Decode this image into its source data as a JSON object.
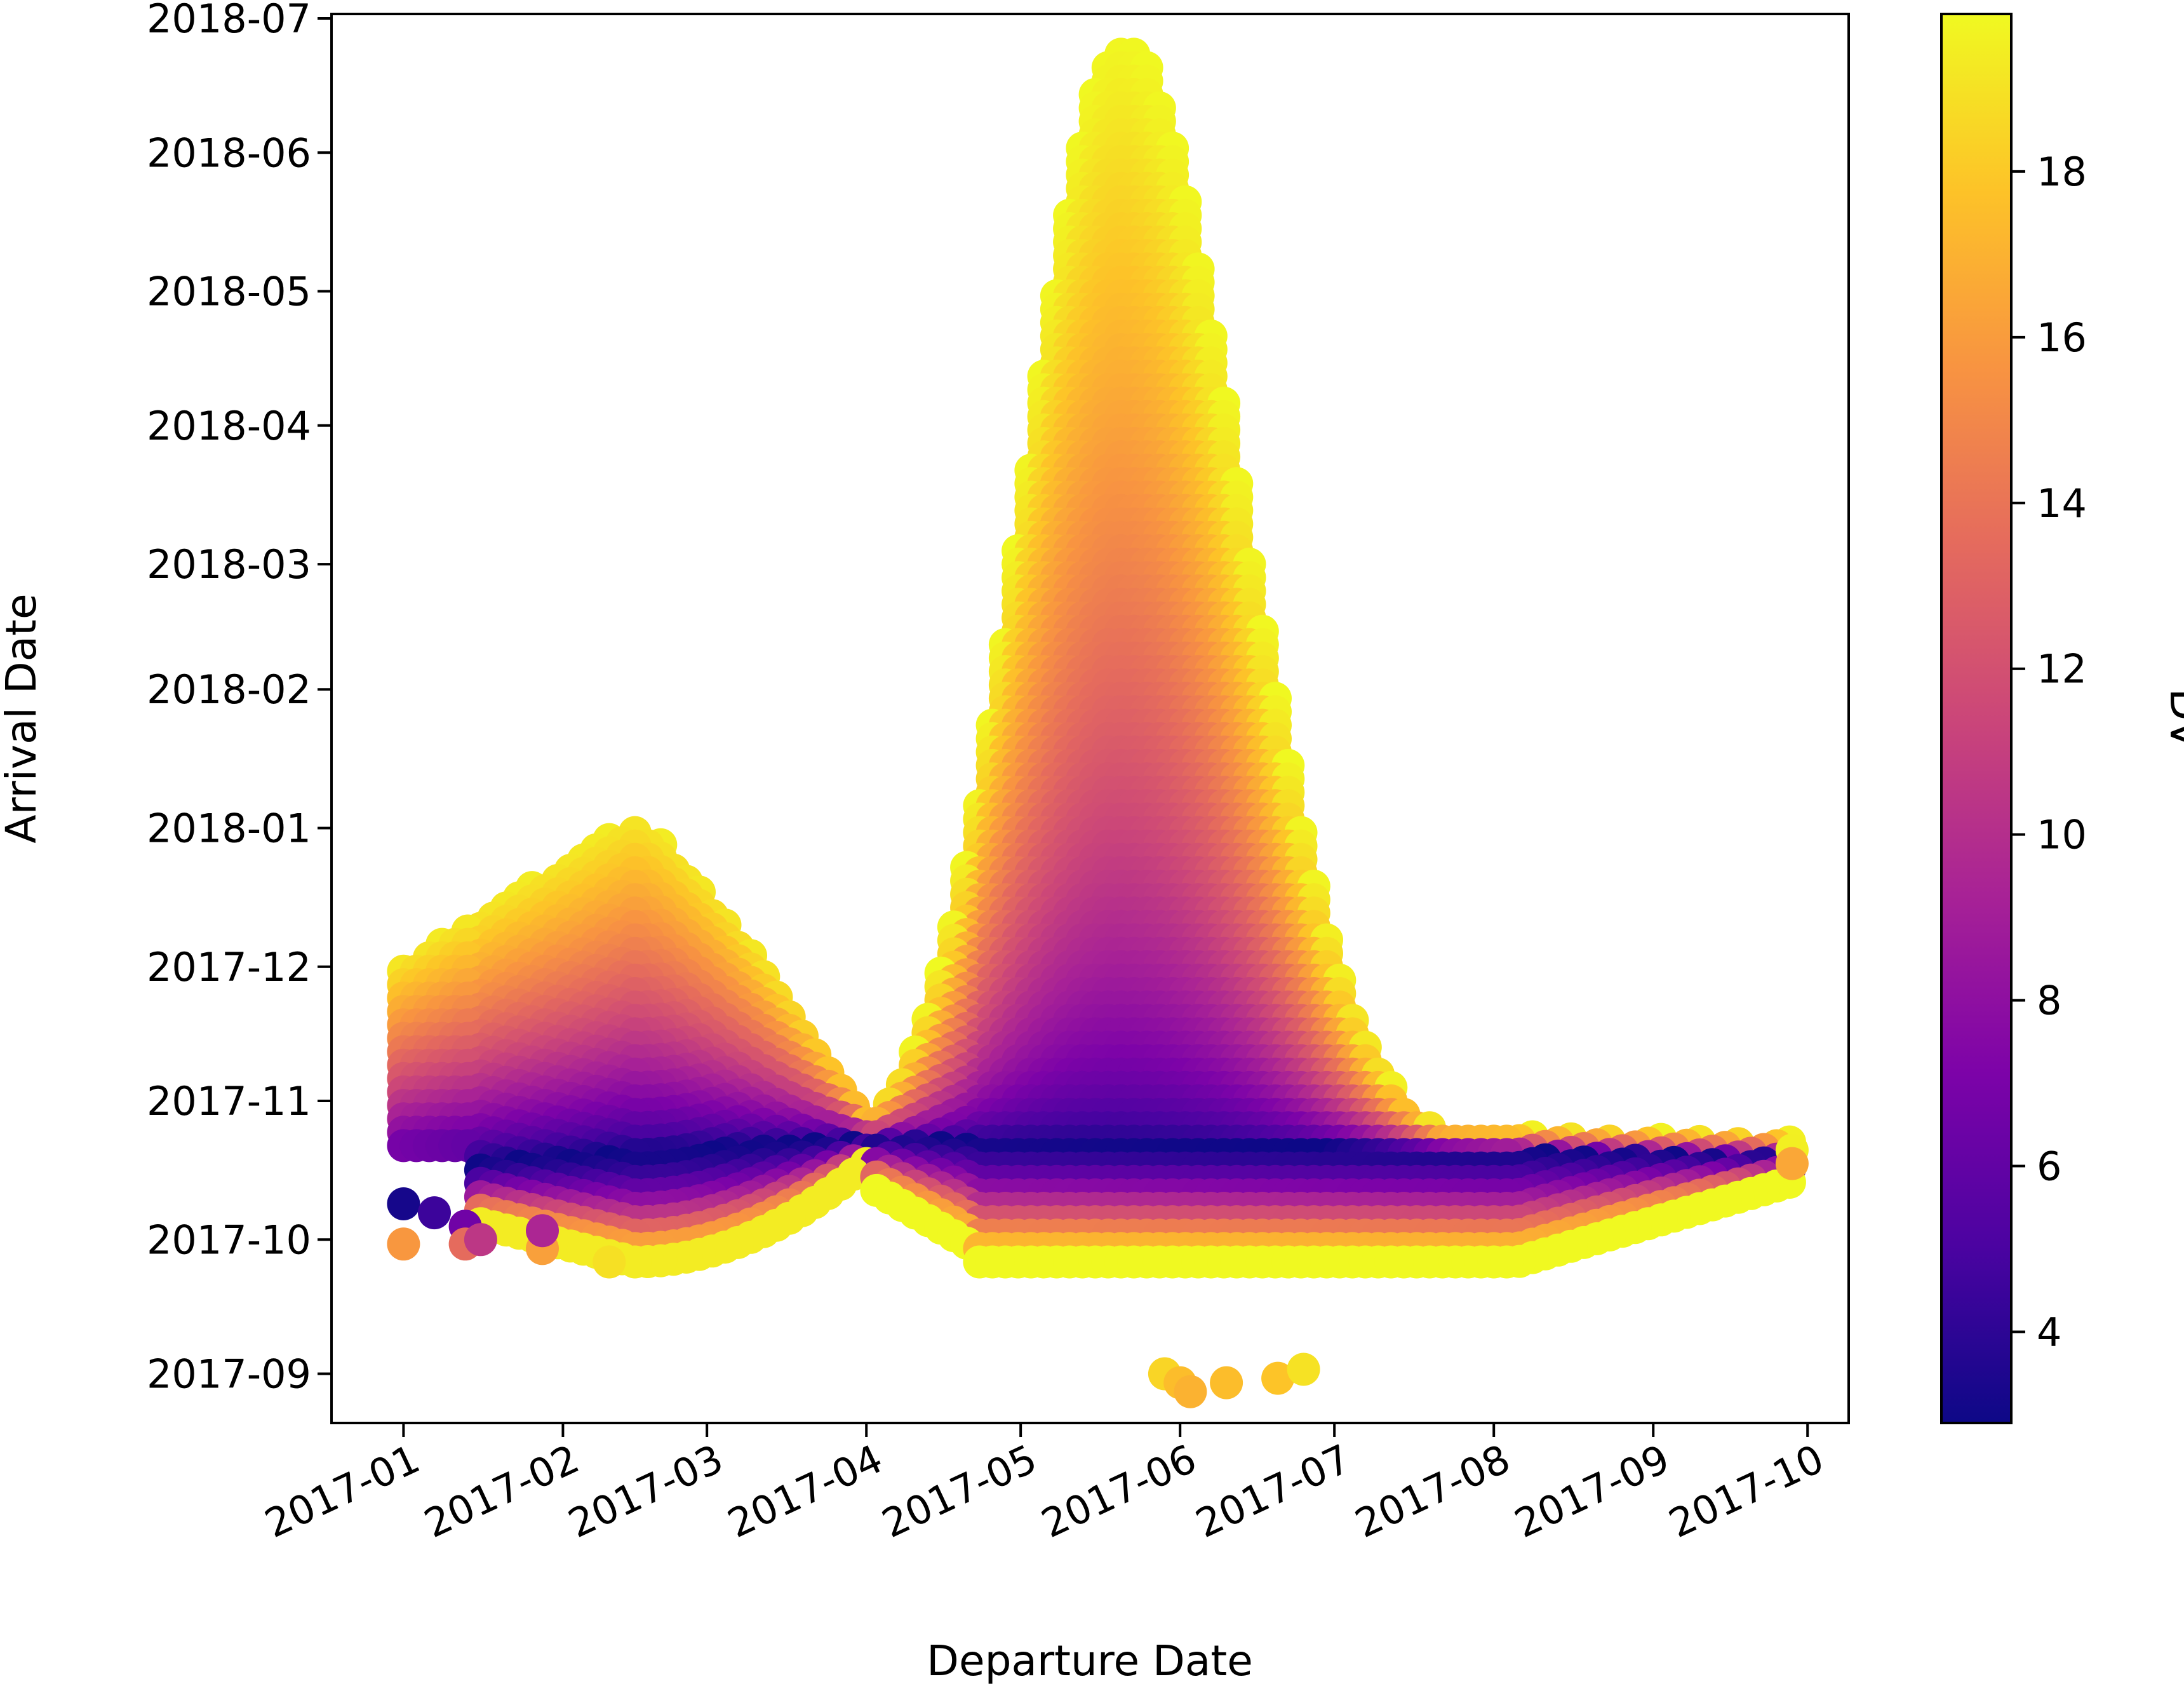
{
  "chart_data": {
    "type": "scatter",
    "title": "",
    "xlabel": "Departure Date",
    "ylabel": "Arrival Date",
    "x_ticks": [
      "2017-01",
      "2017-02",
      "2017-03",
      "2017-04",
      "2017-05",
      "2017-06",
      "2017-07",
      "2017-08",
      "2017-09",
      "2017-10"
    ],
    "y_ticks": [
      "2017-09",
      "2017-10",
      "2017-11",
      "2017-12",
      "2018-01",
      "2018-02",
      "2018-03",
      "2018-04",
      "2018-05",
      "2018-06",
      "2018-07"
    ],
    "xlim": [
      "2016-12-18",
      "2017-10-09"
    ],
    "ylim": [
      "2017-08-21",
      "2018-07-02"
    ],
    "colorbar": {
      "label": "DV",
      "colormap": "plasma",
      "range": [
        2.9,
        19.9
      ],
      "ticks": [
        4,
        6,
        8,
        10,
        12,
        14,
        16,
        18
      ]
    },
    "grid": false,
    "points": [
      {
        "departure": "2017-01-01",
        "arrival": "2017-10-09",
        "dv": 3.2
      },
      {
        "departure": "2017-01-01",
        "arrival": "2017-09-30",
        "dv": 15.8
      },
      {
        "departure": "2017-01-07",
        "arrival": "2017-10-07",
        "dv": 4.5
      },
      {
        "departure": "2017-01-13",
        "arrival": "2017-10-04",
        "dv": 6.6
      },
      {
        "departure": "2017-01-13",
        "arrival": "2017-09-30",
        "dv": 13.5
      },
      {
        "departure": "2017-01-16",
        "arrival": "2017-10-01",
        "dv": 10.5
      },
      {
        "departure": "2017-01-28",
        "arrival": "2017-09-29",
        "dv": 16.2
      },
      {
        "departure": "2017-01-28",
        "arrival": "2017-10-03",
        "dv": 9.5
      },
      {
        "departure": "2017-02-10",
        "arrival": "2017-09-26",
        "dv": 18.9
      },
      {
        "departure": "2017-05-29",
        "arrival": "2017-09-01",
        "dv": 18.5
      },
      {
        "departure": "2017-06-01",
        "arrival": "2017-08-30",
        "dv": 17.5
      },
      {
        "departure": "2017-06-03",
        "arrival": "2017-08-28",
        "dv": 17.0
      },
      {
        "departure": "2017-06-10",
        "arrival": "2017-08-30",
        "dv": 17.5
      },
      {
        "departure": "2017-06-20",
        "arrival": "2017-08-31",
        "dv": 17.8
      },
      {
        "departure": "2017-06-25",
        "arrival": "2017-09-02",
        "dv": 19.0
      },
      {
        "departure": "2017-09-28",
        "arrival": "2017-10-21",
        "dv": 19.5
      },
      {
        "departure": "2017-09-28",
        "arrival": "2017-10-18",
        "dv": 16.5
      }
    ],
    "regions": [
      {
        "name": "",
        "departure_range": [
          "2017-01-01",
          "2017-04-01"
        ]
      },
      {
        "name": "",
        "departure_range": [
          "2017-04-03",
          "2017-09-28"
        ]
      }
    ]
  }
}
